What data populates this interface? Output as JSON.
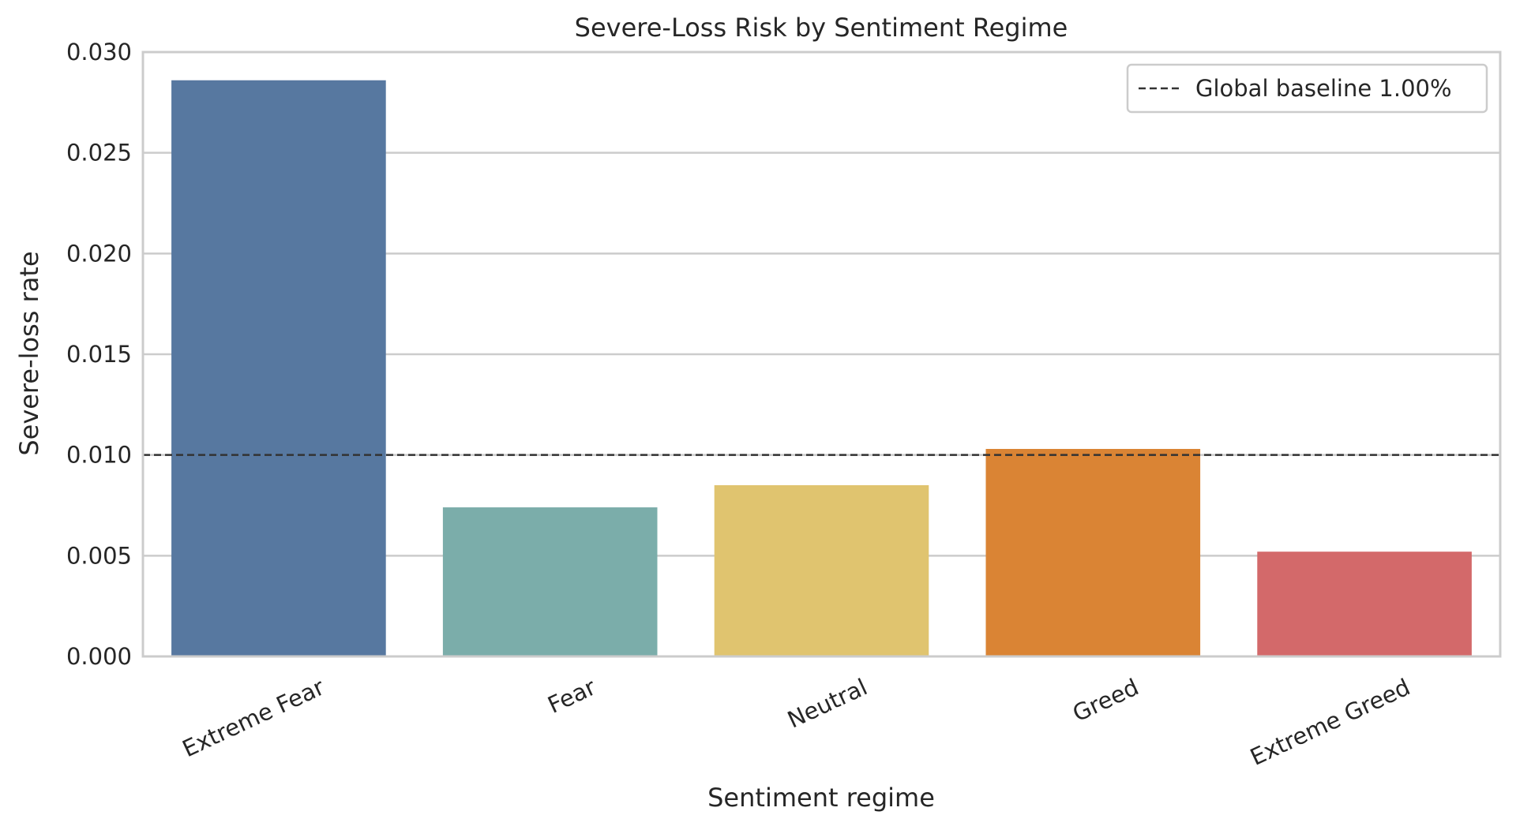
{
  "chart_data": {
    "type": "bar",
    "title": "Severe-Loss Risk by Sentiment Regime",
    "xlabel": "Sentiment regime",
    "ylabel": "Severe-loss rate",
    "categories": [
      "Extreme Fear",
      "Fear",
      "Neutral",
      "Greed",
      "Extreme Greed"
    ],
    "values": [
      0.0286,
      0.0074,
      0.0085,
      0.0103,
      0.0052
    ],
    "colors": [
      "#5778a0",
      "#7badaa",
      "#e0c46f",
      "#da8434",
      "#d3696a"
    ],
    "ylim": [
      0,
      0.03
    ],
    "yticks": [
      "0.000",
      "0.005",
      "0.010",
      "0.015",
      "0.020",
      "0.025",
      "0.030"
    ],
    "ytick_values": [
      0,
      0.005,
      0.01,
      0.015,
      0.02,
      0.025,
      0.03
    ],
    "grid": "horizontal",
    "baseline": {
      "value": 0.01,
      "label": "Global baseline 1.00%",
      "style": "dashed",
      "color": "#333333"
    },
    "legend": {
      "placement": "top-right",
      "entries": [
        "Global baseline 1.00%"
      ]
    }
  }
}
